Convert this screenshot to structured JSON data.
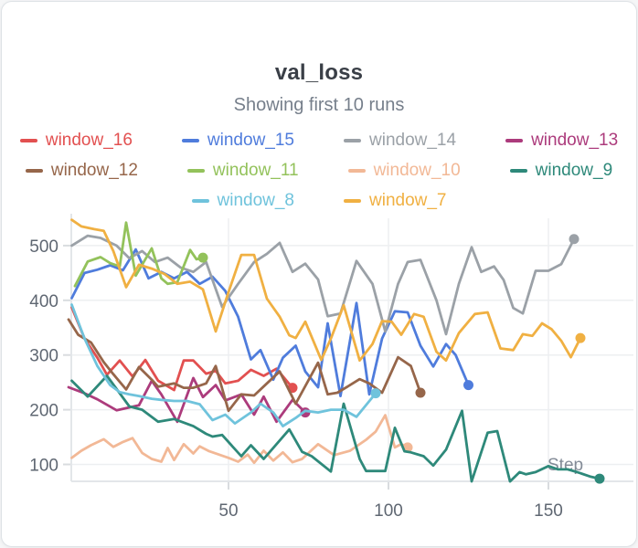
{
  "card": {
    "title": "val_loss",
    "subtitle": "Showing first 10 runs"
  },
  "axis": {
    "x_label": "Step",
    "x_tick_labels": [
      "50",
      "100",
      "150"
    ],
    "y_tick_labels": [
      "100",
      "200",
      "300",
      "400",
      "500"
    ]
  },
  "chart_data": {
    "type": "line",
    "title": "val_loss",
    "subtitle": "Showing first 10 runs",
    "xlabel": "Step",
    "ylabel": "val_loss",
    "x_ticks": [
      50,
      100,
      150
    ],
    "y_ticks": [
      100,
      200,
      300,
      400,
      500
    ],
    "xlim": [
      0,
      171
    ],
    "ylim": [
      60,
      560
    ],
    "grid": true,
    "legend_position": "top-center",
    "series": [
      {
        "name": "window_16",
        "color": "#E25050",
        "end_dot": true,
        "points": [
          [
            1,
            387
          ],
          [
            5,
            330
          ],
          [
            9,
            295
          ],
          [
            12,
            264
          ],
          [
            16,
            290
          ],
          [
            20,
            261
          ],
          [
            24,
            291
          ],
          [
            28,
            253
          ],
          [
            33,
            236
          ],
          [
            36,
            290
          ],
          [
            39,
            290
          ],
          [
            43,
            266
          ],
          [
            46,
            271
          ],
          [
            49,
            248
          ],
          [
            53,
            253
          ],
          [
            57,
            273
          ],
          [
            61,
            262
          ],
          [
            65,
            275
          ],
          [
            70,
            240
          ]
        ]
      },
      {
        "name": "window_15",
        "color": "#4F7CDC",
        "end_dot": true,
        "points": [
          [
            1,
            404
          ],
          [
            5,
            450
          ],
          [
            9,
            456
          ],
          [
            13,
            464
          ],
          [
            17,
            455
          ],
          [
            21,
            493
          ],
          [
            25,
            440
          ],
          [
            29,
            452
          ],
          [
            33,
            440
          ],
          [
            37,
            452
          ],
          [
            41,
            430
          ],
          [
            45,
            443
          ],
          [
            49,
            417
          ],
          [
            53,
            370
          ],
          [
            57,
            292
          ],
          [
            60,
            309
          ],
          [
            64,
            255
          ],
          [
            67,
            295
          ],
          [
            71,
            317
          ],
          [
            74,
            270
          ],
          [
            78,
            241
          ],
          [
            81,
            358
          ],
          [
            85,
            225
          ],
          [
            90,
            395
          ],
          [
            94,
            228
          ],
          [
            98,
            330
          ],
          [
            102,
            380
          ],
          [
            106,
            378
          ],
          [
            110,
            317
          ],
          [
            114,
            279
          ],
          [
            118,
            320
          ],
          [
            121,
            300
          ],
          [
            125,
            245
          ]
        ]
      },
      {
        "name": "window_14",
        "color": "#9BA1A7",
        "end_dot": true,
        "points": [
          [
            1,
            500
          ],
          [
            6,
            518
          ],
          [
            10,
            514
          ],
          [
            15,
            500
          ],
          [
            19,
            477
          ],
          [
            23,
            490
          ],
          [
            27,
            470
          ],
          [
            31,
            478
          ],
          [
            35,
            460
          ],
          [
            39,
            452
          ],
          [
            43,
            470
          ],
          [
            48,
            388
          ],
          [
            53,
            430
          ],
          [
            58,
            470
          ],
          [
            62,
            485
          ],
          [
            66,
            505
          ],
          [
            70,
            452
          ],
          [
            74,
            467
          ],
          [
            78,
            438
          ],
          [
            81,
            371
          ],
          [
            85,
            376
          ],
          [
            90,
            472
          ],
          [
            95,
            430
          ],
          [
            99,
            343
          ],
          [
            103,
            430
          ],
          [
            106,
            470
          ],
          [
            110,
            474
          ],
          [
            115,
            400
          ],
          [
            118,
            338
          ],
          [
            122,
            430
          ],
          [
            126,
            497
          ],
          [
            129,
            452
          ],
          [
            133,
            462
          ],
          [
            136,
            437
          ],
          [
            139,
            386
          ],
          [
            142,
            376
          ],
          [
            146,
            454
          ],
          [
            150,
            454
          ],
          [
            154,
            466
          ],
          [
            158,
            512
          ]
        ]
      },
      {
        "name": "window_13",
        "color": "#AC3B7C",
        "end_dot": true,
        "points": [
          [
            0,
            241
          ],
          [
            5,
            230
          ],
          [
            9,
            219
          ],
          [
            15,
            199
          ],
          [
            22,
            208
          ],
          [
            26,
            253
          ],
          [
            29,
            228
          ],
          [
            34,
            178
          ],
          [
            39,
            258
          ],
          [
            42,
            223
          ],
          [
            46,
            245
          ],
          [
            49,
            217
          ],
          [
            54,
            228
          ],
          [
            58,
            191
          ],
          [
            61,
            224
          ],
          [
            65,
            178
          ],
          [
            70,
            218
          ],
          [
            74,
            195
          ]
        ]
      },
      {
        "name": "window_12",
        "color": "#96664A",
        "end_dot": true,
        "points": [
          [
            0,
            365
          ],
          [
            3,
            337
          ],
          [
            7,
            323
          ],
          [
            11,
            287
          ],
          [
            14,
            265
          ],
          [
            18,
            237
          ],
          [
            22,
            278
          ],
          [
            26,
            255
          ],
          [
            28,
            242
          ],
          [
            33,
            248
          ],
          [
            36,
            240
          ],
          [
            39,
            240
          ],
          [
            43,
            248
          ],
          [
            46,
            280
          ],
          [
            50,
            198
          ],
          [
            54,
            228
          ],
          [
            58,
            226
          ],
          [
            62,
            248
          ],
          [
            66,
            270
          ],
          [
            71,
            211
          ],
          [
            78,
            286
          ],
          [
            81,
            228
          ],
          [
            84,
            231
          ],
          [
            88,
            245
          ],
          [
            91,
            256
          ],
          [
            94,
            248
          ],
          [
            98,
            231
          ],
          [
            103,
            296
          ],
          [
            107,
            280
          ],
          [
            110,
            231
          ]
        ]
      },
      {
        "name": "window_11",
        "color": "#93C25B",
        "end_dot": true,
        "points": [
          [
            2,
            426
          ],
          [
            6,
            471
          ],
          [
            10,
            479
          ],
          [
            13,
            468
          ],
          [
            16,
            462
          ],
          [
            18,
            542
          ],
          [
            21,
            445
          ],
          [
            26,
            495
          ],
          [
            29,
            440
          ],
          [
            31,
            430
          ],
          [
            34,
            433
          ],
          [
            38,
            492
          ],
          [
            40,
            475
          ],
          [
            42,
            478
          ]
        ]
      },
      {
        "name": "window_10",
        "color": "#F2B896",
        "end_dot": true,
        "points": [
          [
            1,
            112
          ],
          [
            4,
            125
          ],
          [
            7,
            135
          ],
          [
            11,
            146
          ],
          [
            14,
            132
          ],
          [
            17,
            141
          ],
          [
            20,
            148
          ],
          [
            23,
            121
          ],
          [
            26,
            110
          ],
          [
            29,
            105
          ],
          [
            31,
            130
          ],
          [
            33,
            108
          ],
          [
            36,
            137
          ],
          [
            39,
            120
          ],
          [
            41,
            133
          ],
          [
            44,
            124
          ],
          [
            47,
            118
          ],
          [
            50,
            112
          ],
          [
            53,
            105
          ],
          [
            56,
            118
          ],
          [
            58,
            103
          ],
          [
            61,
            125
          ],
          [
            64,
            107
          ],
          [
            67,
            122
          ],
          [
            70,
            104
          ],
          [
            73,
            110
          ],
          [
            78,
            137
          ],
          [
            83,
            117
          ],
          [
            88,
            125
          ],
          [
            93,
            145
          ],
          [
            96,
            160
          ],
          [
            99,
            190
          ],
          [
            102,
            131
          ],
          [
            104,
            137
          ],
          [
            106,
            131
          ]
        ]
      },
      {
        "name": "window_9",
        "color": "#2E897A",
        "end_dot": true,
        "points": [
          [
            1,
            253
          ],
          [
            6,
            224
          ],
          [
            12,
            262
          ],
          [
            19,
            206
          ],
          [
            23,
            200
          ],
          [
            28,
            178
          ],
          [
            33,
            183
          ],
          [
            39,
            170
          ],
          [
            43,
            156
          ],
          [
            45,
            151
          ],
          [
            48,
            154
          ],
          [
            54,
            115
          ],
          [
            57,
            135
          ],
          [
            61,
            110
          ],
          [
            69,
            164
          ],
          [
            73,
            123
          ],
          [
            76,
            115
          ],
          [
            82,
            87
          ],
          [
            86,
            211
          ],
          [
            91,
            110
          ],
          [
            93,
            88
          ],
          [
            99,
            88
          ],
          [
            102,
            167
          ],
          [
            105,
            124
          ],
          [
            107,
            122
          ],
          [
            111,
            115
          ],
          [
            114,
            98
          ],
          [
            118,
            127
          ],
          [
            123,
            198
          ],
          [
            126,
            69
          ],
          [
            131,
            158
          ],
          [
            134,
            161
          ],
          [
            138,
            69
          ],
          [
            141,
            86
          ],
          [
            143,
            82
          ],
          [
            146,
            86
          ],
          [
            150,
            97
          ],
          [
            153,
            91
          ],
          [
            156,
            91
          ],
          [
            159,
            86
          ],
          [
            163,
            78
          ],
          [
            166,
            74
          ]
        ]
      },
      {
        "name": "window_8",
        "color": "#6FC3DC",
        "end_dot": true,
        "points": [
          [
            1,
            392
          ],
          [
            5,
            330
          ],
          [
            9,
            280
          ],
          [
            13,
            245
          ],
          [
            16,
            232
          ],
          [
            19,
            228
          ],
          [
            22,
            225
          ],
          [
            26,
            220
          ],
          [
            29,
            218
          ],
          [
            33,
            216
          ],
          [
            37,
            216
          ],
          [
            41,
            210
          ],
          [
            45,
            181
          ],
          [
            49,
            191
          ],
          [
            52,
            175
          ],
          [
            57,
            195
          ],
          [
            60,
            211
          ],
          [
            64,
            195
          ],
          [
            67,
            170
          ],
          [
            71,
            185
          ],
          [
            74,
            198
          ],
          [
            78,
            195
          ],
          [
            82,
            200
          ],
          [
            86,
            200
          ],
          [
            90,
            187
          ],
          [
            96,
            230
          ]
        ]
      },
      {
        "name": "window_7",
        "color": "#F0B042",
        "end_dot": true,
        "points": [
          [
            1,
            547
          ],
          [
            4,
            535
          ],
          [
            8,
            530
          ],
          [
            11,
            527
          ],
          [
            14,
            490
          ],
          [
            18,
            424
          ],
          [
            22,
            465
          ],
          [
            26,
            458
          ],
          [
            30,
            448
          ],
          [
            34,
            430
          ],
          [
            38,
            434
          ],
          [
            42,
            420
          ],
          [
            46,
            343
          ],
          [
            50,
            415
          ],
          [
            54,
            483
          ],
          [
            58,
            483
          ],
          [
            62,
            403
          ],
          [
            66,
            370
          ],
          [
            69,
            336
          ],
          [
            71,
            331
          ],
          [
            74,
            361
          ],
          [
            79,
            291
          ],
          [
            82,
            330
          ],
          [
            86,
            391
          ],
          [
            91,
            290
          ],
          [
            95,
            320
          ],
          [
            98,
            362
          ],
          [
            101,
            361
          ],
          [
            104,
            337
          ],
          [
            108,
            375
          ],
          [
            111,
            370
          ],
          [
            115,
            306
          ],
          [
            118,
            290
          ],
          [
            122,
            340
          ],
          [
            127,
            375
          ],
          [
            131,
            378
          ],
          [
            135,
            312
          ],
          [
            139,
            309
          ],
          [
            142,
            338
          ],
          [
            145,
            335
          ],
          [
            148,
            358
          ],
          [
            151,
            347
          ],
          [
            154,
            326
          ],
          [
            157,
            296
          ],
          [
            160,
            331
          ]
        ]
      }
    ]
  }
}
